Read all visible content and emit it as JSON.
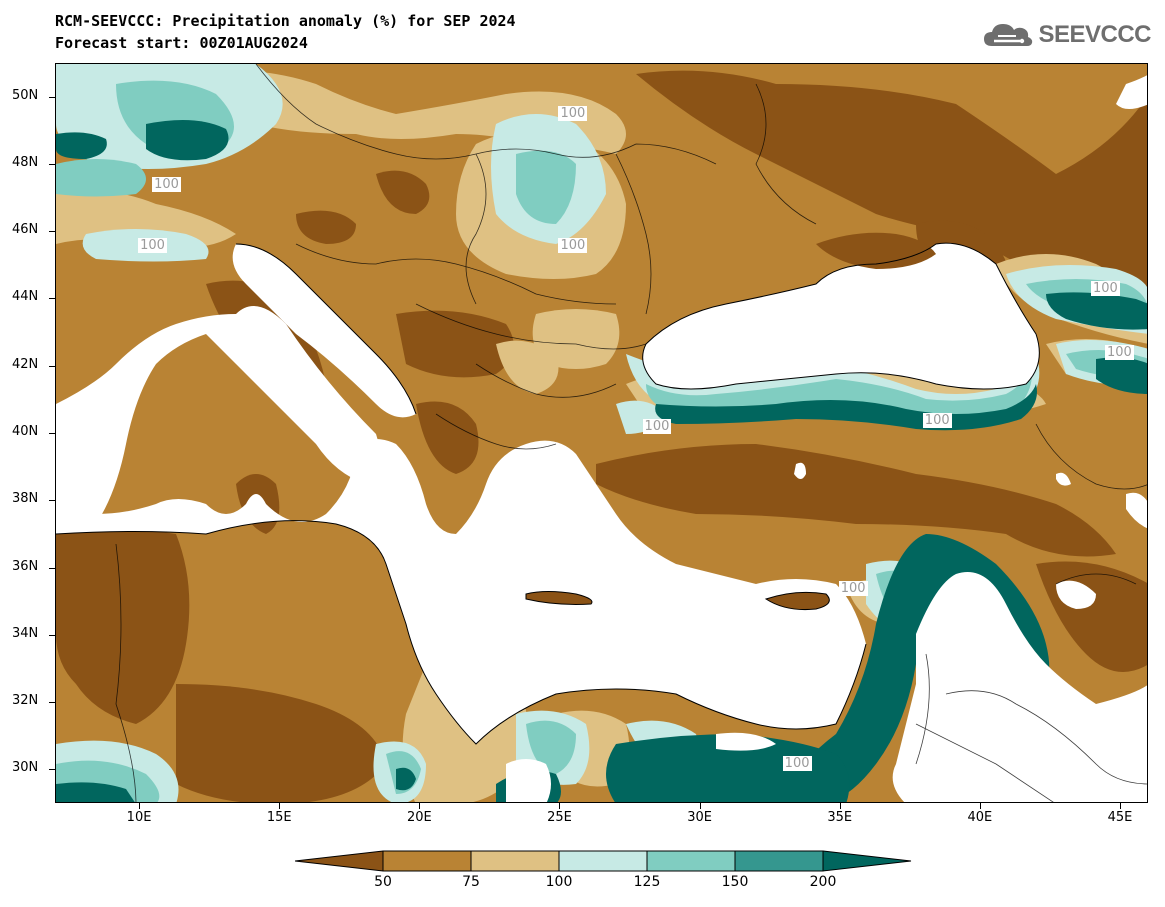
{
  "header": {
    "title": "RCM-SEEVCCC: Precipitation anomaly (%) for SEP 2024",
    "subtitle": "Forecast start: 00Z01AUG2024"
  },
  "logo": {
    "text": "SEEVCCC",
    "icon": "cloud-icon"
  },
  "map": {
    "lon_range": [
      7,
      46
    ],
    "lat_range": [
      29,
      51
    ],
    "y_ticks": [
      {
        "lat": 50,
        "label": "50N"
      },
      {
        "lat": 48,
        "label": "48N"
      },
      {
        "lat": 46,
        "label": "46N"
      },
      {
        "lat": 44,
        "label": "44N"
      },
      {
        "lat": 42,
        "label": "42N"
      },
      {
        "lat": 40,
        "label": "40N"
      },
      {
        "lat": 38,
        "label": "38N"
      },
      {
        "lat": 36,
        "label": "36N"
      },
      {
        "lat": 34,
        "label": "34N"
      },
      {
        "lat": 32,
        "label": "32N"
      },
      {
        "lat": 30,
        "label": "30N"
      }
    ],
    "x_ticks": [
      {
        "lon": 10,
        "label": "10E"
      },
      {
        "lon": 15,
        "label": "15E"
      },
      {
        "lon": 20,
        "label": "20E"
      },
      {
        "lon": 25,
        "label": "25E"
      },
      {
        "lon": 30,
        "label": "30E"
      },
      {
        "lon": 35,
        "label": "35E"
      },
      {
        "lon": 40,
        "label": "40E"
      },
      {
        "lon": 45,
        "label": "45E"
      }
    ],
    "contour_labels": [
      {
        "text": "100",
        "lon": 25.5,
        "lat": 49.5
      },
      {
        "text": "100",
        "lon": 11.0,
        "lat": 47.4
      },
      {
        "text": "100",
        "lon": 10.5,
        "lat": 45.6
      },
      {
        "text": "100",
        "lon": 25.5,
        "lat": 45.6
      },
      {
        "text": "100",
        "lon": 44.5,
        "lat": 44.3
      },
      {
        "text": "100",
        "lon": 45.0,
        "lat": 42.4
      },
      {
        "text": "100",
        "lon": 38.5,
        "lat": 40.4
      },
      {
        "text": "100",
        "lon": 28.5,
        "lat": 40.2
      },
      {
        "text": "100",
        "lon": 35.5,
        "lat": 35.4
      },
      {
        "text": "100",
        "lon": 33.5,
        "lat": 30.2
      }
    ]
  },
  "colorbar": {
    "levels": [
      "50",
      "75",
      "100",
      "125",
      "150",
      "200"
    ],
    "colors": [
      "#8b5316",
      "#b98334",
      "#dfc183",
      "#c7eae5",
      "#80cdc1",
      "#35978f",
      "#01665e"
    ]
  }
}
